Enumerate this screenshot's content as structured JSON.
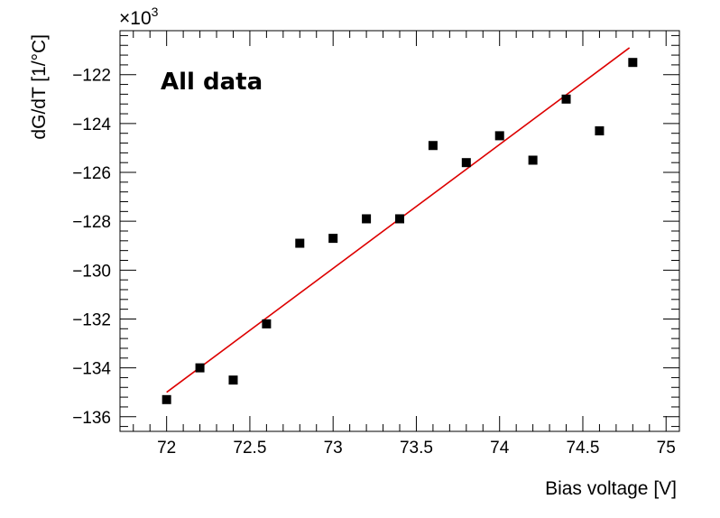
{
  "chart_data": {
    "type": "scatter",
    "title": "",
    "xlabel": "Bias voltage [V]",
    "ylabel": "dG/dT [1/°C]",
    "annotation": "All data",
    "exponent_label": "×10",
    "exponent_power": "3",
    "xlim": [
      71.72,
      75.08
    ],
    "ylim": [
      -136.6,
      -120.2
    ],
    "x_ticks": [
      72,
      72.5,
      73,
      73.5,
      74,
      74.5,
      75
    ],
    "x_tick_labels": [
      "72",
      "72.5",
      "73",
      "73.5",
      "74",
      "74.5",
      "75"
    ],
    "y_ticks": [
      -136,
      -134,
      -132,
      -130,
      -128,
      -126,
      -124,
      -122
    ],
    "y_tick_labels": [
      "−136",
      "−134",
      "−132",
      "−130",
      "−128",
      "−126",
      "−124",
      "−122"
    ],
    "grid": false,
    "series": [
      {
        "marker": "square",
        "color": "#000000",
        "x": [
          72.0,
          72.2,
          72.4,
          72.6,
          72.8,
          73.0,
          73.2,
          73.4,
          73.6,
          73.8,
          74.0,
          74.2,
          74.4,
          74.6,
          74.8
        ],
        "y": [
          -135.3,
          -134.0,
          -134.5,
          -132.2,
          -128.9,
          -128.7,
          -127.9,
          -127.9,
          -124.9,
          -125.6,
          -124.5,
          -125.5,
          -123.0,
          -124.3,
          -121.5
        ]
      },
      {
        "marker": "line",
        "color": "#dd0000",
        "x": [
          72.0,
          74.78
        ],
        "y": [
          -135.0,
          -120.9
        ]
      }
    ]
  }
}
